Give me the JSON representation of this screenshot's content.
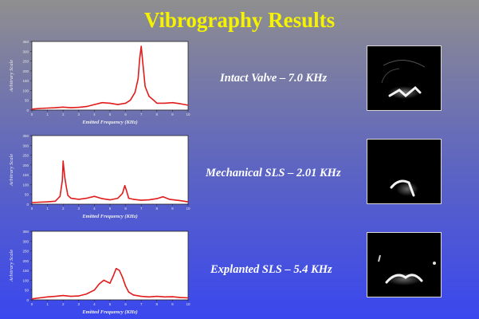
{
  "title": "Vibrography  Results",
  "charts_meta": {
    "line_color": "#e01c1c"
  },
  "results": [
    {
      "label": "Intact Valve – 7.0 KHz"
    },
    {
      "label": "Mechanical SLS – 2.01 KHz"
    },
    {
      "label": "Explanted SLS – 5.4 KHz"
    }
  ],
  "chart_data": [
    {
      "type": "line",
      "xlabel": "Emitted Frequency (KHz)",
      "ylabel": "Arbitrary Scale",
      "xlim": [
        0,
        10
      ],
      "ylim": [
        0,
        350
      ],
      "xticks": [
        "0",
        "1",
        "2",
        "3",
        "4",
        "5",
        "6",
        "7",
        "8",
        "9",
        "10"
      ],
      "yticks": [
        "0",
        "50",
        "100",
        "150",
        "200",
        "250",
        "300",
        "350"
      ],
      "x": [
        0,
        0.5,
        1,
        1.5,
        2,
        2.5,
        3,
        3.5,
        4,
        4.5,
        5,
        5.5,
        6,
        6.3,
        6.6,
        6.8,
        6.9,
        7.0,
        7.1,
        7.25,
        7.5,
        7.8,
        8,
        8.5,
        9,
        9.5,
        10
      ],
      "y": [
        5,
        8,
        10,
        12,
        15,
        12,
        14,
        18,
        28,
        38,
        35,
        28,
        35,
        50,
        90,
        160,
        260,
        325,
        240,
        120,
        70,
        50,
        35,
        35,
        38,
        32,
        25
      ]
    },
    {
      "type": "line",
      "xlabel": "Emitted Frequency (KHz)",
      "ylabel": "Arbitrary Scale",
      "xlim": [
        0,
        10
      ],
      "ylim": [
        0,
        350
      ],
      "xticks": [
        "0",
        "1",
        "2",
        "3",
        "4",
        "5",
        "6",
        "7",
        "8",
        "9",
        "10"
      ],
      "yticks": [
        "0",
        "50",
        "100",
        "150",
        "200",
        "250",
        "300",
        "350"
      ],
      "x": [
        0,
        0.5,
        1,
        1.5,
        1.8,
        1.95,
        2.0,
        2.05,
        2.1,
        2.2,
        2.3,
        2.5,
        3,
        3.5,
        4,
        4.5,
        5,
        5.5,
        5.8,
        5.95,
        6.05,
        6.2,
        6.5,
        7,
        7.5,
        8,
        8.4,
        8.8,
        9.5,
        10
      ],
      "y": [
        8,
        10,
        12,
        15,
        40,
        120,
        220,
        180,
        140,
        90,
        45,
        30,
        25,
        30,
        40,
        28,
        22,
        30,
        55,
        95,
        70,
        30,
        25,
        20,
        22,
        28,
        38,
        25,
        18,
        12
      ]
    },
    {
      "type": "line",
      "xlabel": "Emitted Frequency (KHz)",
      "ylabel": "Arbitrary Scale",
      "xlim": [
        0,
        10
      ],
      "ylim": [
        0,
        350
      ],
      "xticks": [
        "0",
        "1",
        "2",
        "3",
        "4",
        "5",
        "6",
        "7",
        "8",
        "9",
        "10"
      ],
      "yticks": [
        "0",
        "50",
        "100",
        "150",
        "200",
        "250",
        "300",
        "350"
      ],
      "x": [
        0,
        0.5,
        1,
        1.5,
        2,
        2.5,
        3,
        3.5,
        4,
        4.3,
        4.6,
        5.0,
        5.2,
        5.4,
        5.6,
        5.8,
        6.0,
        6.2,
        6.5,
        7,
        7.5,
        8,
        8.5,
        9,
        9.5,
        10
      ],
      "y": [
        5,
        10,
        15,
        18,
        22,
        18,
        20,
        30,
        50,
        80,
        100,
        85,
        120,
        160,
        150,
        115,
        70,
        40,
        25,
        18,
        15,
        18,
        15,
        16,
        12,
        10
      ]
    }
  ]
}
